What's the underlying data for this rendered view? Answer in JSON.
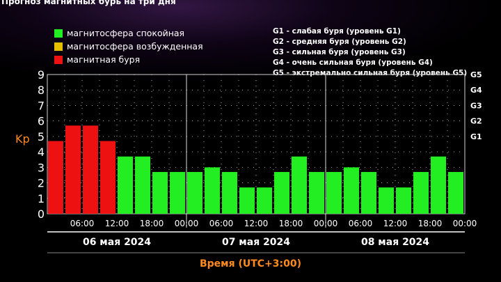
{
  "title": "Прогноз магнитных бурь на три дня",
  "legend_left": [
    {
      "label": "магнитосфера спокойная",
      "color": "#22ee22"
    },
    {
      "label": "магнитосфера возбужденная",
      "color": "#e6c000"
    },
    {
      "label": "магнитная буря",
      "color": "#ee1111"
    }
  ],
  "legend_right": [
    "G1 - слабая буря (уровень G1)",
    "G2 - средняя буря (уровень G2)",
    "G3 - сильная буря (уровень G3)",
    "G4 - очень сильная буря (уровень G4)",
    "G5 - экстремально сильная буря (уровень G5)"
  ],
  "chart_data": {
    "type": "bar",
    "ylabel": "Kp",
    "xlabel": "Время (UTC+3:00)",
    "ylim": [
      0,
      9
    ],
    "y_ticks": [
      "0",
      "1",
      "2",
      "3",
      "4",
      "5",
      "6",
      "7",
      "8",
      "9"
    ],
    "g_levels": [
      {
        "label": "G1",
        "kp": 5
      },
      {
        "label": "G2",
        "kp": 6
      },
      {
        "label": "G3",
        "kp": 7
      },
      {
        "label": "G4",
        "kp": 8
      },
      {
        "label": "G5",
        "kp": 9
      }
    ],
    "days": [
      "06 мая 2024",
      "07 мая 2024",
      "08 мая 2024"
    ],
    "time_labels": [
      "06:00",
      "12:00",
      "18:00",
      "00:00"
    ],
    "values": [
      4.7,
      5.7,
      5.7,
      4.7,
      3.7,
      3.7,
      2.7,
      2.7,
      2.7,
      3.0,
      2.7,
      1.7,
      1.7,
      2.7,
      3.7,
      2.7,
      2.7,
      3.0,
      2.7,
      1.7,
      1.7,
      2.7,
      3.7,
      2.7
    ],
    "colors": {
      "quiet": "#22ee22",
      "unsettled": "#e6c000",
      "storm": "#ee1111"
    },
    "grid": true
  }
}
